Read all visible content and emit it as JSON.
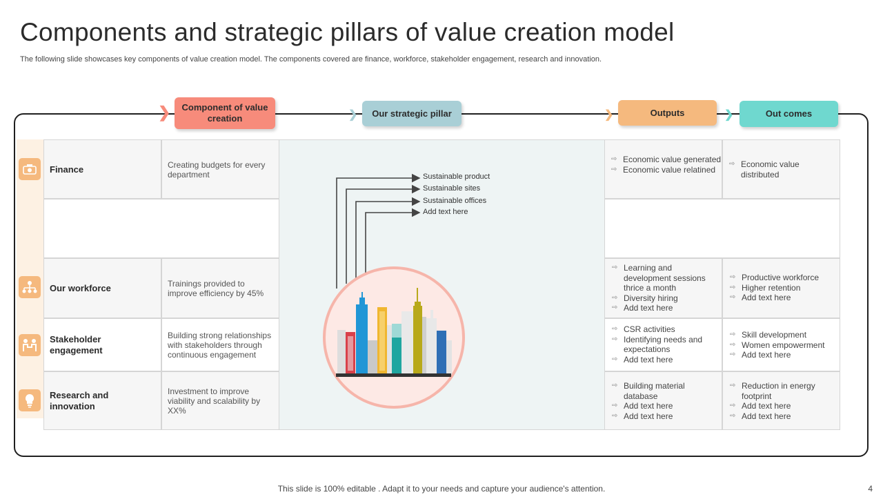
{
  "title": "Components and strategic pillars of value creation model",
  "subtitle": "The following slide showcases key components of value creation model. The components covered are finance, workforce, stakeholder engagement, research and innovation.",
  "headers": {
    "component": "Component of value creation",
    "pillar": "Our strategic pillar",
    "outputs": "Outputs",
    "outcomes": "Out comes"
  },
  "colors": {
    "component": "#f78b7b",
    "pillar": "#a9cfd6",
    "outputs": "#f5b97e",
    "outcomes": "#6fd8cf",
    "icon_bg": "#f5b97e"
  },
  "rows": [
    {
      "icon": "money-icon",
      "name": "Finance",
      "description": "Creating budgets for every department",
      "outputs": [
        "Economic value generated",
        "Economic value relatined"
      ],
      "outcomes": [
        "Economic value distributed"
      ]
    },
    {
      "icon": "org-chart-icon",
      "name": "Our workforce",
      "description": "Trainings provided to improve efficiency by 45%",
      "outputs": [
        "Learning and development sessions thrice a month",
        "Diversity hiring",
        "Add text here"
      ],
      "outcomes": [
        "Productive workforce",
        "Higher retention",
        "Add text here"
      ]
    },
    {
      "icon": "handshake-icon",
      "name": "Stakeholder engagement",
      "description": "Building strong relationships with stakeholders through continuous engagement",
      "outputs": [
        "CSR activities",
        "Identifying needs and expectations",
        "Add text here"
      ],
      "outcomes": [
        "Skill development",
        "Women empowerment",
        "Add text here"
      ]
    },
    {
      "icon": "lightbulb-icon",
      "name": "Research and innovation",
      "description": "Investment to improve viability and scalability by XX%",
      "outputs": [
        "Building material database",
        "Add text here",
        "Add text here"
      ],
      "outcomes": [
        "Reduction in energy footprint",
        "Add text here",
        "Add text here"
      ]
    }
  ],
  "pillars": [
    "Sustainable product",
    "Sustainable sites",
    "Sustainable offices",
    "Add text here"
  ],
  "footer": "This slide is 100% editable . Adapt it to your needs and capture your audience's attention.",
  "page_number": "4"
}
